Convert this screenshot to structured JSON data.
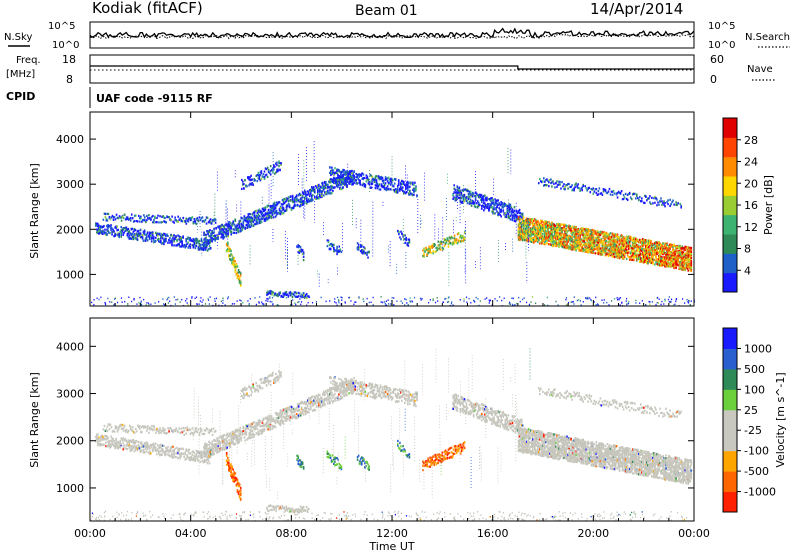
{
  "header": {
    "title": "Kodiak (fitACF)",
    "beam": "Beam 01",
    "date": "14/Apr/2014"
  },
  "noise_panel": {
    "left_label": "N.Sky",
    "right_label": "N.Search",
    "left_ticks": [
      "10^5",
      "10^0"
    ],
    "right_ticks": [
      "10^5",
      "10^0"
    ]
  },
  "freq_panel": {
    "left_label_1": "Freq.",
    "left_label_2": "[MHz]",
    "left_ticks": [
      "18",
      "8"
    ],
    "right_label": "Nave",
    "right_ticks": [
      "60",
      "0"
    ]
  },
  "cpid": {
    "label": "CPID",
    "text": "UAF code -9115 RF"
  },
  "colors": {
    "power_scale": [
      "#1a1aff",
      "#1e5fc8",
      "#2e8b57",
      "#3cb371",
      "#9acd32",
      "#ffd700",
      "#ff8c00",
      "#ff4500",
      "#e00000"
    ],
    "velocity_scale": [
      "#1a1aff",
      "#2a5fd0",
      "#2e8b57",
      "#6ccf3c",
      "#c8c8c0",
      "#c8c8c0",
      "#ffa500",
      "#ff6600",
      "#ff2000"
    ]
  },
  "chart_data": [
    {
      "type": "heatmap",
      "name": "power",
      "xlabel": "",
      "ylabel": "Slant Range [km]",
      "x_ticks": [
        "00:00",
        "04:00",
        "08:00",
        "12:00",
        "16:00",
        "20:00",
        "00:00"
      ],
      "y_ticks": [
        "1000",
        "2000",
        "3000",
        "4000"
      ],
      "ylim": [
        300,
        4600
      ],
      "xlim": [
        0,
        24
      ],
      "colorbar": {
        "label": "Power [dB]",
        "ticks": [
          "4",
          "8",
          "12",
          "16",
          "20",
          "24",
          "28"
        ],
        "range": [
          0,
          30
        ]
      }
    },
    {
      "type": "heatmap",
      "name": "velocity",
      "xlabel": "Time UT",
      "ylabel": "Slant Range [km]",
      "x_ticks": [
        "00:00",
        "04:00",
        "08:00",
        "12:00",
        "16:00",
        "20:00",
        "00:00"
      ],
      "y_ticks": [
        "1000",
        "2000",
        "3000",
        "4000"
      ],
      "ylim": [
        300,
        4600
      ],
      "xlim": [
        0,
        24
      ],
      "colorbar": {
        "label": "Velocity [m s^-1]",
        "ticks": [
          "1000",
          "500",
          "100",
          "25",
          "-25",
          "-100",
          "-500",
          "-1000"
        ]
      }
    }
  ]
}
